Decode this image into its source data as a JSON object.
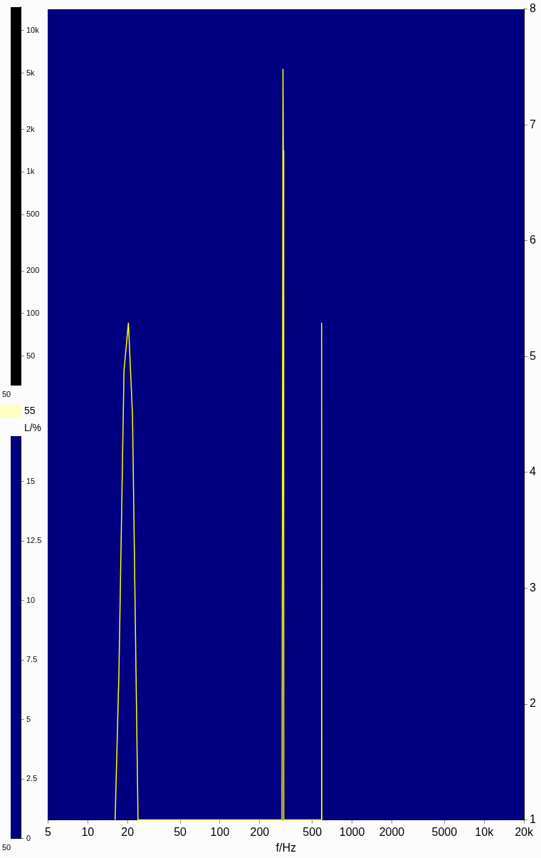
{
  "chart_data": [
    {
      "type": "line",
      "log": "y",
      "ylim": [
        31,
        14700
      ],
      "yticks": [
        {
          "value": 50,
          "label": "50"
        },
        {
          "value": 100,
          "label": "100"
        },
        {
          "value": 200,
          "label": "200"
        },
        {
          "value": 500,
          "label": "500"
        },
        {
          "value": 1000,
          "label": "1k"
        },
        {
          "value": 2000,
          "label": "2k"
        },
        {
          "value": 5000,
          "label": "5k"
        },
        {
          "value": 10000,
          "label": "10k"
        }
      ],
      "categories": [
        "50"
      ],
      "annotations": [
        "55"
      ]
    },
    {
      "type": "line",
      "ylabel": "L/%",
      "ylim": [
        0,
        16.9
      ],
      "yticks": [
        0,
        2.5,
        5,
        7.5,
        10,
        12.5,
        15
      ],
      "categories": [
        "50"
      ]
    },
    {
      "type": "line",
      "xlabel": "f/Hz",
      "log": "x",
      "xlim": [
        5,
        20000
      ],
      "xticks": [
        5,
        10,
        20,
        50,
        100,
        200,
        500,
        1000,
        2000,
        5000,
        {
          "value": 10000,
          "label": "10k"
        },
        {
          "value": 20000,
          "label": "20k"
        }
      ],
      "ylim": [
        1,
        8
      ],
      "yticks": [
        1,
        2,
        3,
        4,
        5,
        6,
        7,
        8
      ],
      "legend": false,
      "grid": false,
      "series": [
        {
          "color": "#ffff00",
          "x": [
            16.1,
            17.2,
            18.8,
            20.3,
            21.8,
            24,
            295,
            300,
            302,
            304,
            584,
            588,
            590
          ],
          "values": [
            1,
            2.26,
            4.88,
            5.29,
            4.49,
            1,
            1,
            7.48,
            6.78,
            1,
            1,
            5.29,
            1
          ]
        }
      ]
    }
  ]
}
